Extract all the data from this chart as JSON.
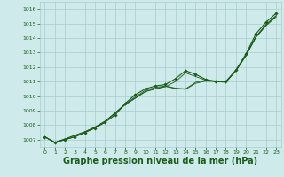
{
  "bg_color": "#ceeaea",
  "grid_color": "#a8cccc",
  "line_color": "#1a5c1a",
  "marker_color": "#1a5c1a",
  "xlabel": "Graphe pression niveau de la mer (hPa)",
  "xlabel_fontsize": 7,
  "xlim": [
    -0.5,
    23.5
  ],
  "ylim": [
    1006.5,
    1016.5
  ],
  "yticks": [
    1007,
    1008,
    1009,
    1010,
    1011,
    1012,
    1013,
    1014,
    1015,
    1016
  ],
  "xticks": [
    0,
    1,
    2,
    3,
    4,
    5,
    6,
    7,
    8,
    9,
    10,
    11,
    12,
    13,
    14,
    15,
    16,
    17,
    18,
    19,
    20,
    21,
    22,
    23
  ],
  "series": [
    [
      1007.2,
      1006.8,
      1007.0,
      1007.2,
      1007.5,
      1007.8,
      1008.2,
      1008.7,
      1009.5,
      1010.1,
      1010.5,
      1010.7,
      1010.8,
      1011.2,
      1011.75,
      1011.5,
      1011.15,
      1011.0,
      1011.0,
      1011.8,
      1012.9,
      1014.3,
      1015.1,
      1015.7
    ],
    [
      1007.2,
      1006.8,
      1007.0,
      1007.2,
      1007.5,
      1007.85,
      1008.25,
      1008.85,
      1009.45,
      1009.95,
      1010.4,
      1010.6,
      1010.7,
      1010.55,
      1010.5,
      1010.95,
      1011.1,
      1011.05,
      1011.0,
      1011.75,
      1012.8,
      1014.1,
      1014.9,
      1015.5
    ],
    [
      1007.2,
      1006.8,
      1007.05,
      1007.3,
      1007.55,
      1007.85,
      1008.25,
      1008.8,
      1009.4,
      1009.85,
      1010.3,
      1010.5,
      1010.65,
      1011.0,
      1011.6,
      1011.35,
      1011.1,
      1011.0,
      1010.95,
      1011.75,
      1012.8,
      1014.1,
      1014.95,
      1015.55
    ],
    [
      1007.2,
      1006.82,
      1007.05,
      1007.3,
      1007.55,
      1007.88,
      1008.28,
      1008.85,
      1009.45,
      1009.88,
      1010.32,
      1010.52,
      1010.67,
      1010.52,
      1010.47,
      1010.88,
      1011.03,
      1011.0,
      1010.97,
      1011.72,
      1012.78,
      1014.05,
      1014.85,
      1015.45
    ]
  ]
}
